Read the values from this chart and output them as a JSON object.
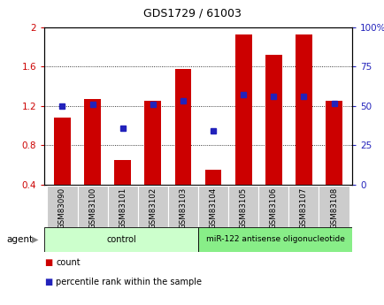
{
  "title": "GDS1729 / 61003",
  "samples": [
    "GSM83090",
    "GSM83100",
    "GSM83101",
    "GSM83102",
    "GSM83103",
    "GSM83104",
    "GSM83105",
    "GSM83106",
    "GSM83107",
    "GSM83108"
  ],
  "red_values": [
    1.08,
    1.27,
    0.65,
    1.25,
    1.58,
    0.55,
    1.93,
    1.72,
    1.93,
    1.25
  ],
  "blue_values_left": [
    1.2,
    1.22,
    0.97,
    1.22,
    1.25,
    0.95,
    1.32,
    1.3,
    1.3,
    1.23
  ],
  "ylim_left": [
    0.4,
    2.0
  ],
  "ylim_right": [
    0,
    100
  ],
  "yticks_left": [
    0.4,
    0.8,
    1.2,
    1.6,
    2.0
  ],
  "ytick_labels_left": [
    "0.4",
    "0.8",
    "1.2",
    "1.6",
    "2"
  ],
  "yticks_right": [
    0,
    25,
    50,
    75,
    100
  ],
  "ytick_labels_right": [
    "0",
    "25",
    "50",
    "75",
    "100%"
  ],
  "red_color": "#cc0000",
  "blue_color": "#2222bb",
  "bar_width": 0.55,
  "control_label": "control",
  "treatment_label": "miR-122 antisense oligonucleotide",
  "legend_count": "count",
  "legend_pct": "percentile rank within the sample",
  "agent_label": "agent",
  "control_bg": "#ccffcc",
  "treatment_bg": "#88ee88",
  "xlabel_bg": "#cccccc",
  "plot_bg": "#ffffff",
  "title_color": "#000000",
  "grid_yticks": [
    0.8,
    1.2,
    1.6
  ]
}
